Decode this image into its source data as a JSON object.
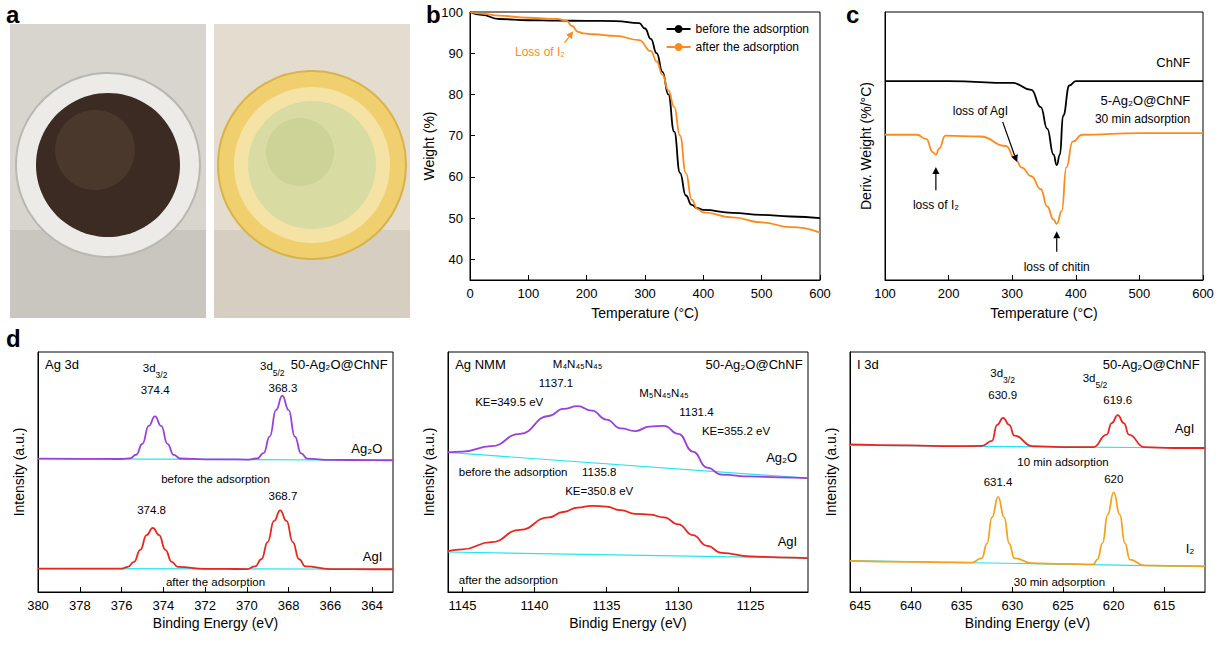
{
  "chart_data": [
    {
      "panel": "a",
      "type": "photo"
    },
    {
      "panel": "b",
      "type": "line",
      "x_label": "Temperature (°C)",
      "y_label": "Weight (%)",
      "xlim": [
        0,
        600
      ],
      "xticks": [
        0,
        100,
        200,
        300,
        400,
        500,
        600
      ],
      "ylim": [
        35,
        100
      ],
      "yticks": [
        40,
        50,
        60,
        70,
        80,
        90,
        100
      ],
      "grid": false,
      "legend": "upper right",
      "series": [
        {
          "name": "before the adsorption",
          "color": "#000000",
          "x": [
            0,
            20,
            50,
            100,
            150,
            200,
            250,
            290,
            300,
            310,
            320,
            330,
            340,
            350,
            360,
            370,
            380,
            390,
            400,
            450,
            500,
            550,
            600
          ],
          "values": [
            100,
            99.3,
            98.3,
            98,
            97.9,
            97.85,
            97.8,
            97.3,
            96,
            93.5,
            90,
            85.5,
            80,
            71,
            61,
            55.5,
            53.2,
            52.4,
            52,
            51.3,
            50.8,
            50.4,
            50
          ]
        },
        {
          "name": "after the adsorption",
          "color": "#ff8a1c",
          "x": [
            0,
            20,
            50,
            100,
            150,
            165,
            175,
            185,
            195,
            210,
            250,
            290,
            310,
            320,
            330,
            340,
            350,
            360,
            370,
            380,
            390,
            400,
            450,
            500,
            550,
            600
          ],
          "values": [
            100,
            99.6,
            99.1,
            98.6,
            98.3,
            97.9,
            96.6,
            95.2,
            94.8,
            94.6,
            94.2,
            93.2,
            90.5,
            88,
            84.8,
            81,
            77,
            70,
            61,
            54.5,
            52.2,
            51.4,
            50.2,
            49,
            47.8,
            46.5
          ]
        }
      ],
      "annotations": [
        "Loss of I₂"
      ]
    },
    {
      "panel": "c",
      "type": "line",
      "x_label": "Temperature (°C)",
      "y_label": "Deriv. Weight (%/°C)",
      "xlim": [
        100,
        600
      ],
      "xticks": [
        100,
        200,
        300,
        400,
        500,
        600
      ],
      "ylim": [
        -2.3,
        0.8
      ],
      "tick_labels": "x",
      "grid": false,
      "series": [
        {
          "name": "ChNF",
          "color": "#000000",
          "x": [
            100,
            200,
            300,
            330,
            345,
            355,
            365,
            370,
            375,
            380,
            390,
            400,
            500,
            600
          ],
          "values": [
            0,
            0,
            -0.02,
            -0.1,
            -0.3,
            -0.55,
            -0.85,
            -0.97,
            -0.85,
            -0.4,
            -0.05,
            0,
            0,
            0
          ]
        },
        {
          "name": "5-Ag₂O@ChNF",
          "color": "#ff8a1c",
          "x": [
            100,
            150,
            165,
            175,
            180,
            185,
            195,
            250,
            290,
            305,
            315,
            330,
            345,
            355,
            365,
            370,
            378,
            385,
            395,
            410,
            500,
            600
          ],
          "values": [
            -0.62,
            -0.62,
            -0.67,
            -0.82,
            -0.85,
            -0.78,
            -0.63,
            -0.64,
            -0.75,
            -0.9,
            -1.0,
            -1.1,
            -1.25,
            -1.45,
            -1.6,
            -1.65,
            -1.5,
            -1.0,
            -0.7,
            -0.62,
            -0.6,
            -0.6
          ]
        }
      ],
      "annotations": [
        "30 min adsorption",
        "loss of I₂",
        "loss of AgI",
        "loss of chitin"
      ]
    },
    {
      "panel": "d",
      "type": "line",
      "title": "Ag 3d",
      "subtitle": "50-Ag₂O@ChNF",
      "x_label": "Binding Energy (eV)",
      "y_label": "Intensity (a.u.)",
      "xlim": [
        380,
        363
      ],
      "xticks": [
        380,
        378,
        376,
        374,
        372,
        370,
        368,
        366,
        364
      ],
      "ylim": [
        0,
        13.5
      ],
      "tick_labels": "x",
      "grid": false,
      "series": [
        {
          "name": "Ag₂O",
          "color": "#9a3fd9",
          "x": [
            380,
            378,
            376,
            375.6,
            375.3,
            375,
            374.7,
            374.4,
            374.1,
            373.8,
            373.5,
            373.2,
            372,
            371,
            370,
            369.5,
            369.2,
            368.9,
            368.6,
            368.3,
            368,
            367.7,
            367.4,
            367.1,
            366,
            364,
            363
          ],
          "values": [
            7.5,
            7.49,
            7.48,
            7.52,
            7.72,
            8.34,
            9.34,
            9.88,
            9.34,
            8.33,
            7.71,
            7.51,
            7.46,
            7.46,
            7.45,
            7.51,
            7.81,
            8.75,
            10.24,
            11.05,
            10.24,
            8.74,
            7.8,
            7.5,
            7.43,
            7.42,
            7.41
          ]
        },
        {
          "color": "#22e6f2",
          "x": [
            380,
            363
          ],
          "values": [
            7.5,
            7.41
          ]
        },
        {
          "name": "AgI",
          "color": "#e8261d",
          "x": [
            380,
            378,
            376,
            375.7,
            375.4,
            375.1,
            374.8,
            374.5,
            374.2,
            373.9,
            373.6,
            373.3,
            372,
            371,
            370,
            369.6,
            369.3,
            369,
            368.7,
            368.4,
            368.1,
            367.8,
            367.5,
            367.2,
            366,
            364,
            363
          ],
          "values": [
            1.32,
            1.32,
            1.31,
            1.41,
            1.7,
            2.37,
            3.2,
            3.61,
            3.2,
            2.37,
            1.7,
            1.41,
            1.3,
            1.3,
            1.29,
            1.44,
            1.85,
            2.81,
            4.0,
            4.59,
            4.0,
            2.81,
            1.85,
            1.44,
            1.29,
            1.28,
            1.28
          ]
        },
        {
          "color": "#22e6f2",
          "x": [
            380,
            363
          ],
          "values": [
            1.32,
            1.28
          ]
        }
      ],
      "annotations": [
        "3d3/2",
        "374.4",
        "3d5/2",
        "368.3",
        "before the adsorption",
        "374.8",
        "368.7",
        "after the adsorption"
      ]
    },
    {
      "type": "line",
      "title": "Ag NMM",
      "subtitle": "50-Ag₂O@ChNF",
      "x_label": "Bindig Energy (eV)",
      "y_label": "Intensity (a.u.)",
      "xlim": [
        1146,
        1121
      ],
      "xticks": [
        1145,
        1140,
        1135,
        1130,
        1125
      ],
      "ylim": [
        0,
        13.5
      ],
      "tick_labels": "x",
      "grid": false,
      "series": [
        {
          "name": "Ag₂O",
          "color": "#9a3fd9",
          "x": [
            1146,
            1145,
            1143,
            1141,
            1139,
            1138,
            1137,
            1136,
            1135,
            1134,
            1133,
            1132,
            1131,
            1130,
            1129,
            1128,
            1127,
            1125,
            1123,
            1121
          ],
          "values": [
            7.85,
            7.9,
            8.2,
            8.9,
            9.9,
            10.3,
            10.45,
            10.2,
            9.7,
            9.2,
            9.05,
            9.3,
            9.35,
            8.9,
            7.9,
            7.0,
            6.6,
            6.5,
            6.45,
            6.4
          ]
        },
        {
          "color": "#22e6f2",
          "x": [
            1146,
            1121
          ],
          "values": [
            7.85,
            6.4
          ]
        },
        {
          "name": "AgI",
          "color": "#e8261d",
          "x": [
            1146,
            1145,
            1143,
            1141,
            1139,
            1138,
            1137,
            1136,
            1135,
            1134,
            1133,
            1132,
            1131,
            1130,
            1129,
            1128,
            1127,
            1125,
            1123,
            1121
          ],
          "values": [
            2.3,
            2.4,
            2.8,
            3.5,
            4.2,
            4.5,
            4.75,
            4.85,
            4.8,
            4.6,
            4.4,
            4.35,
            4.2,
            3.8,
            3.2,
            2.6,
            2.2,
            2.0,
            1.95,
            1.9
          ]
        },
        {
          "color": "#22e6f2",
          "x": [
            1146,
            1121
          ],
          "values": [
            2.25,
            1.9
          ]
        }
      ],
      "annotations": [
        "M₄N₄₅N₄₅",
        "1137.1",
        "KE=349.5 eV",
        "M₅N₄₅N₄₅",
        "1131.4",
        "KE=355.2 eV",
        "before the adsorption",
        "1135.8",
        "KE=350.8 eV",
        "after the adsorption"
      ]
    },
    {
      "type": "line",
      "title": "I 3d",
      "subtitle": "50-Ag₂O@ChNF",
      "x_label": "Binding Energy (eV)",
      "y_label": "Intensity (a.u.)",
      "xlim": [
        646,
        611
      ],
      "xticks": [
        645,
        640,
        635,
        630,
        625,
        620,
        615
      ],
      "ylim": [
        0,
        13.5
      ],
      "tick_labels": "x",
      "grid": false,
      "series": [
        {
          "name": "AgI",
          "color": "#e8261d",
          "x": [
            646,
            640,
            636,
            633,
            632,
            631.5,
            630.9,
            630.3,
            629.8,
            628,
            625,
            622,
            620.7,
            620.2,
            619.6,
            619,
            618.5,
            617,
            614,
            611
          ],
          "values": [
            8.3,
            8.25,
            8.2,
            8.22,
            8.5,
            9.4,
            9.8,
            9.4,
            8.8,
            8.2,
            8.15,
            8.15,
            8.85,
            9.5,
            9.95,
            9.5,
            8.85,
            8.15,
            8.1,
            8.1
          ]
        },
        {
          "color": "#22e6f2",
          "x": [
            646,
            611
          ],
          "values": [
            8.25,
            8.1
          ]
        },
        {
          "name": "I₂",
          "color": "#f5a31a",
          "x": [
            646,
            640,
            636,
            634,
            633,
            632.5,
            632,
            631.4,
            630.8,
            630.3,
            629.8,
            628,
            625,
            622,
            621.6,
            621.1,
            620.6,
            620,
            619.4,
            618.9,
            618.4,
            617,
            614,
            611
          ],
          "values": [
            1.75,
            1.7,
            1.67,
            1.65,
            1.91,
            2.72,
            4.2,
            5.35,
            4.2,
            2.72,
            1.9,
            1.62,
            1.58,
            1.55,
            1.84,
            2.75,
            4.35,
            5.6,
            4.35,
            2.75,
            1.82,
            1.5,
            1.47,
            1.45
          ]
        },
        {
          "color": "#22e6f2",
          "x": [
            646,
            611
          ],
          "values": [
            1.76,
            1.43
          ]
        }
      ],
      "annotations": [
        "3d3/2",
        "630.9",
        "3d5/2",
        "619.6",
        "10 min adsorption",
        "631.4",
        "620",
        "30 min adsorption"
      ]
    }
  ]
}
